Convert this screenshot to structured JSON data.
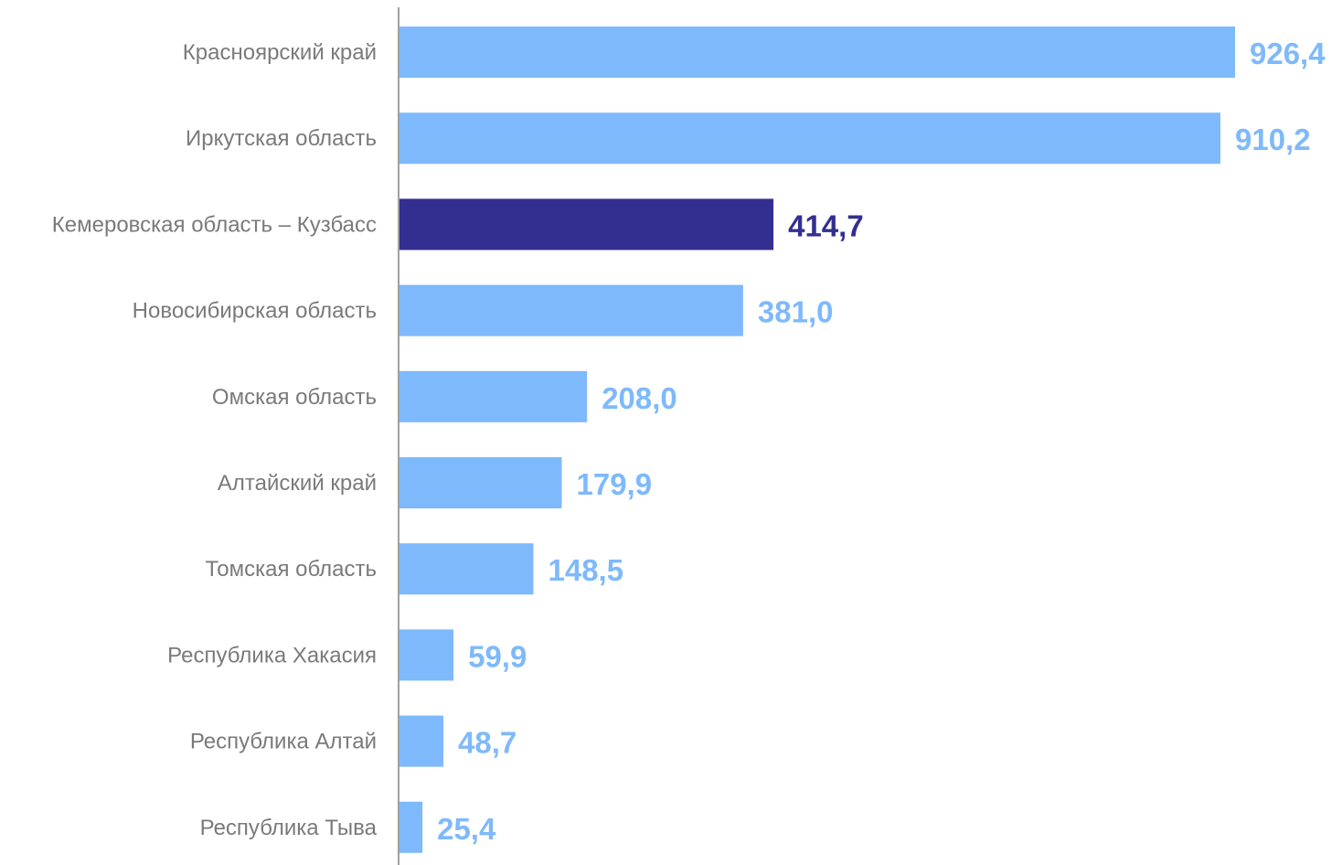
{
  "chart_data": {
    "type": "bar",
    "orientation": "horizontal",
    "title": "",
    "xlabel": "",
    "ylabel": "",
    "xlim": [
      0,
      926.4
    ],
    "grid": false,
    "legend": "none",
    "categories": [
      "Красноярский край",
      "Иркутская область",
      "Кемеровская область – Кузбасс",
      "Новосибирская область",
      "Омская область",
      "Алтайский край",
      "Томская область",
      "Республика Хакасия",
      "Республика Алтай",
      "Республика Тыва"
    ],
    "values": [
      926.4,
      910.2,
      414.7,
      381.0,
      208.0,
      179.9,
      148.5,
      59.9,
      48.7,
      25.4
    ],
    "value_labels": [
      "926,4",
      "910,2",
      "414,7",
      "381,0",
      "208,0",
      "179,9",
      "148,5",
      "59,9",
      "48,7",
      "25,4"
    ],
    "highlight_index": 2,
    "colors": {
      "bar": "#7eb9fb",
      "highlight": "#332f91",
      "axis": "#a0a0a0",
      "category_text": "#7a7a7a"
    }
  }
}
